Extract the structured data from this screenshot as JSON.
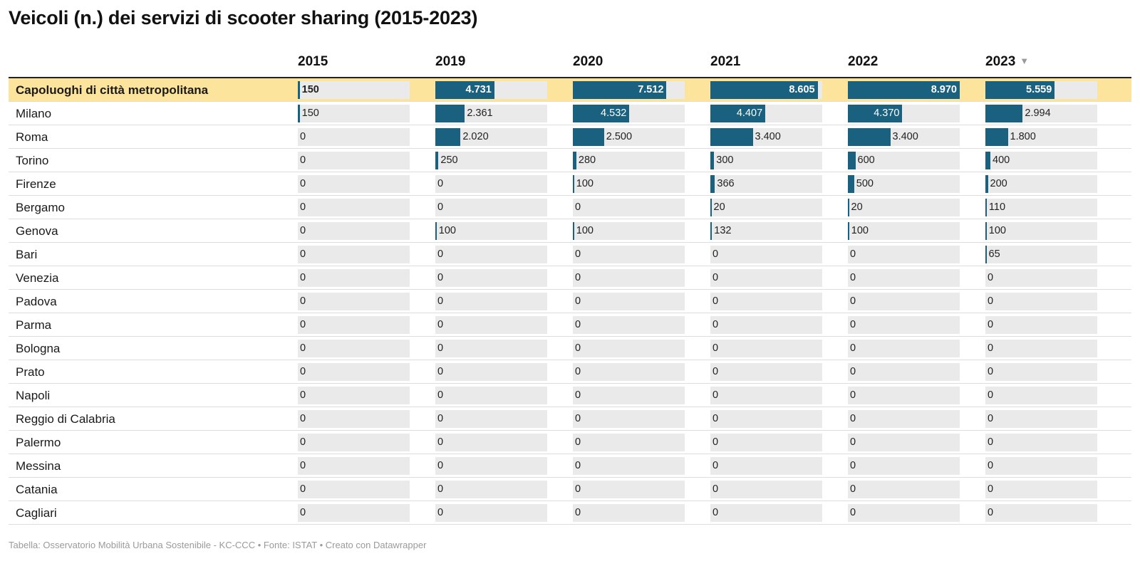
{
  "title": "Veicoli (n.) dei servizi di scooter sharing  (2015-2023)",
  "sort_icon": "▼",
  "colors": {
    "bar": "#1a6180",
    "bar_bg": "#eaeaea",
    "highlight": "#fde49c"
  },
  "footer": "Tabella: Osservatorio Mobilità Urbana Sostenibile - KC-CCC • Fonte: ISTAT • Creato con Datawrapper",
  "chart_data": {
    "type": "table",
    "columns": [
      "2015",
      "2019",
      "2020",
      "2021",
      "2022",
      "2023"
    ],
    "sorted_column": "2023",
    "rows": [
      {
        "label": "Capoluoghi di città metropolitana",
        "highlight": true,
        "values": [
          150,
          4731,
          7512,
          8605,
          8970,
          5559
        ],
        "display": [
          "150",
          "4.731",
          "7.512",
          "8.605",
          "8.970",
          "5.559"
        ]
      },
      {
        "label": "Milano",
        "values": [
          150,
          2361,
          4532,
          4407,
          4370,
          2994
        ],
        "display": [
          "150",
          "2.361",
          "4.532",
          "4.407",
          "4.370",
          "2.994"
        ]
      },
      {
        "label": "Roma",
        "values": [
          0,
          2020,
          2500,
          3400,
          3400,
          1800
        ],
        "display": [
          "0",
          "2.020",
          "2.500",
          "3.400",
          "3.400",
          "1.800"
        ]
      },
      {
        "label": "Torino",
        "values": [
          0,
          250,
          280,
          300,
          600,
          400
        ],
        "display": [
          "0",
          "250",
          "280",
          "300",
          "600",
          "400"
        ]
      },
      {
        "label": "Firenze",
        "values": [
          0,
          0,
          100,
          366,
          500,
          200
        ],
        "display": [
          "0",
          "0",
          "100",
          "366",
          "500",
          "200"
        ]
      },
      {
        "label": "Bergamo",
        "values": [
          0,
          0,
          0,
          20,
          20,
          110
        ],
        "display": [
          "0",
          "0",
          "0",
          "20",
          "20",
          "110"
        ]
      },
      {
        "label": "Genova",
        "values": [
          0,
          100,
          100,
          132,
          100,
          100
        ],
        "display": [
          "0",
          "100",
          "100",
          "132",
          "100",
          "100"
        ]
      },
      {
        "label": "Bari",
        "values": [
          0,
          0,
          0,
          0,
          0,
          65
        ],
        "display": [
          "0",
          "0",
          "0",
          "0",
          "0",
          "65"
        ]
      },
      {
        "label": "Venezia",
        "values": [
          0,
          0,
          0,
          0,
          0,
          0
        ],
        "display": [
          "0",
          "0",
          "0",
          "0",
          "0",
          "0"
        ]
      },
      {
        "label": "Padova",
        "values": [
          0,
          0,
          0,
          0,
          0,
          0
        ],
        "display": [
          "0",
          "0",
          "0",
          "0",
          "0",
          "0"
        ]
      },
      {
        "label": "Parma",
        "values": [
          0,
          0,
          0,
          0,
          0,
          0
        ],
        "display": [
          "0",
          "0",
          "0",
          "0",
          "0",
          "0"
        ]
      },
      {
        "label": "Bologna",
        "values": [
          0,
          0,
          0,
          0,
          0,
          0
        ],
        "display": [
          "0",
          "0",
          "0",
          "0",
          "0",
          "0"
        ]
      },
      {
        "label": "Prato",
        "values": [
          0,
          0,
          0,
          0,
          0,
          0
        ],
        "display": [
          "0",
          "0",
          "0",
          "0",
          "0",
          "0"
        ]
      },
      {
        "label": "Napoli",
        "values": [
          0,
          0,
          0,
          0,
          0,
          0
        ],
        "display": [
          "0",
          "0",
          "0",
          "0",
          "0",
          "0"
        ]
      },
      {
        "label": "Reggio di Calabria",
        "values": [
          0,
          0,
          0,
          0,
          0,
          0
        ],
        "display": [
          "0",
          "0",
          "0",
          "0",
          "0",
          "0"
        ]
      },
      {
        "label": "Palermo",
        "values": [
          0,
          0,
          0,
          0,
          0,
          0
        ],
        "display": [
          "0",
          "0",
          "0",
          "0",
          "0",
          "0"
        ]
      },
      {
        "label": "Messina",
        "values": [
          0,
          0,
          0,
          0,
          0,
          0
        ],
        "display": [
          "0",
          "0",
          "0",
          "0",
          "0",
          "0"
        ]
      },
      {
        "label": "Catania",
        "values": [
          0,
          0,
          0,
          0,
          0,
          0
        ],
        "display": [
          "0",
          "0",
          "0",
          "0",
          "0",
          "0"
        ]
      },
      {
        "label": "Cagliari",
        "values": [
          0,
          0,
          0,
          0,
          0,
          0
        ],
        "display": [
          "0",
          "0",
          "0",
          "0",
          "0",
          "0"
        ]
      }
    ]
  }
}
